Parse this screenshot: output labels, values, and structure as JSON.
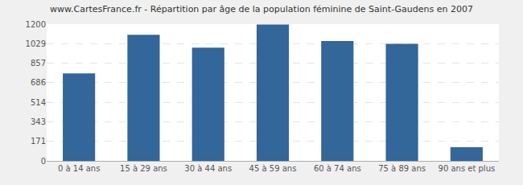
{
  "chart_data": {
    "type": "bar",
    "title": "www.CartesFrance.fr - Répartition par âge de la population féminine de Saint-Gaudens en 2007",
    "categories": [
      "0 à 14 ans",
      "15 à 29 ans",
      "30 à 44 ans",
      "45 à 59 ans",
      "60 à 74 ans",
      "75 à 89 ans",
      "90 ans et plus"
    ],
    "values": [
      768,
      1107,
      993,
      1196,
      1052,
      1027,
      120
    ],
    "color": "#336699",
    "ylim": [
      0,
      1200
    ],
    "yticks": [
      0,
      171,
      343,
      514,
      686,
      857,
      1029,
      1200
    ],
    "grid": true
  }
}
